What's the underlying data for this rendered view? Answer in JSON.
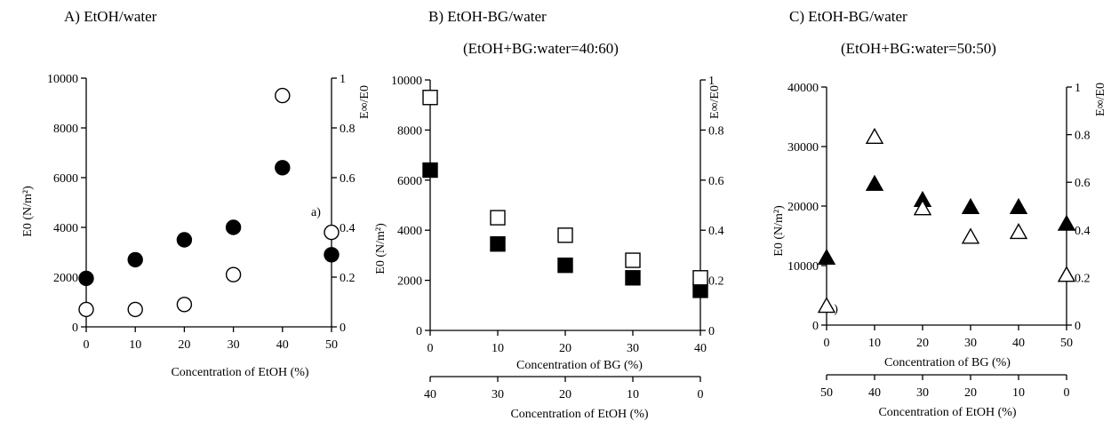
{
  "chart_data": [
    {
      "type": "scatter",
      "title": "A) EtOH/water",
      "subtitle": "",
      "xlabel": "Concentration of EtOH (%)",
      "ylabel": "E0 (N/m²)",
      "y2label": "E∞/E0",
      "xlim": [
        0,
        50
      ],
      "ylim": [
        0,
        10000
      ],
      "y2lim": [
        0,
        1
      ],
      "xticks": [
        0,
        10,
        20,
        30,
        40,
        50
      ],
      "yticks": [
        0,
        2000,
        4000,
        6000,
        8000,
        10000
      ],
      "y2ticks": [
        0,
        0.2,
        0.4,
        0.6,
        0.8,
        1
      ],
      "grid": false,
      "annotation": "a)",
      "series": [
        {
          "marker": "circle",
          "filled": true,
          "axis": "left",
          "x": [
            0,
            10,
            20,
            30,
            40,
            50
          ],
          "values": [
            1950,
            2700,
            3500,
            4000,
            6400,
            2900
          ]
        },
        {
          "marker": "circle",
          "filled": false,
          "axis": "right",
          "x": [
            0,
            10,
            20,
            30,
            40,
            50
          ],
          "values": [
            0.07,
            0.07,
            0.09,
            0.21,
            0.93,
            0.38
          ]
        }
      ]
    },
    {
      "type": "scatter",
      "title": "B) EtOH-BG/water",
      "subtitle": "(EtOH+BG:water=40:60)",
      "xlabel": "Concentration of BG (%)",
      "x2label": "Concentration of EtOH (%)",
      "ylabel": "E0 (N/m²)",
      "y2label": "E∞/E0",
      "xlim": [
        0,
        40
      ],
      "ylim": [
        0,
        10000
      ],
      "y2lim": [
        0,
        1
      ],
      "xticks": [
        0,
        10,
        20,
        30,
        40
      ],
      "x2ticks": [
        40,
        30,
        20,
        10,
        0
      ],
      "yticks": [
        0,
        2000,
        4000,
        6000,
        8000,
        10000
      ],
      "y2ticks": [
        0,
        0.2,
        0.4,
        0.6,
        0.8,
        1
      ],
      "grid": false,
      "series": [
        {
          "marker": "square",
          "filled": true,
          "axis": "left",
          "x": [
            0,
            10,
            20,
            30,
            40
          ],
          "values": [
            6400,
            3450,
            2600,
            2100,
            1600
          ]
        },
        {
          "marker": "square",
          "filled": false,
          "axis": "right",
          "x": [
            0,
            10,
            20,
            30,
            40
          ],
          "values": [
            0.93,
            0.45,
            0.38,
            0.28,
            0.21
          ]
        }
      ]
    },
    {
      "type": "scatter",
      "title": "C) EtOH-BG/water",
      "subtitle": "(EtOH+BG:water=50:50)",
      "xlabel": "Concentration of BG (%)",
      "x2label": "Concentration of EtOH (%)",
      "ylabel": "E0 (N/m²)",
      "y2label": "E∞/E0",
      "xlim": [
        0,
        50
      ],
      "ylim": [
        0,
        40000
      ],
      "y2lim": [
        0,
        1
      ],
      "xticks": [
        0,
        10,
        20,
        30,
        40,
        50
      ],
      "x2ticks": [
        50,
        40,
        30,
        20,
        10,
        0
      ],
      "yticks": [
        0,
        10000,
        20000,
        30000,
        40000
      ],
      "y2ticks": [
        0,
        0.2,
        0.4,
        0.6,
        0.8,
        1
      ],
      "grid": false,
      "annotation": "a)",
      "series": [
        {
          "marker": "triangle",
          "filled": true,
          "axis": "left",
          "x": [
            0,
            10,
            20,
            30,
            40,
            50
          ],
          "values": [
            11300,
            23700,
            21000,
            19800,
            19800,
            17000
          ]
        },
        {
          "marker": "triangle",
          "filled": false,
          "axis": "right",
          "x": [
            0,
            10,
            20,
            30,
            40,
            50
          ],
          "values": [
            0.08,
            0.79,
            0.49,
            0.37,
            0.39,
            0.21
          ]
        }
      ]
    }
  ]
}
